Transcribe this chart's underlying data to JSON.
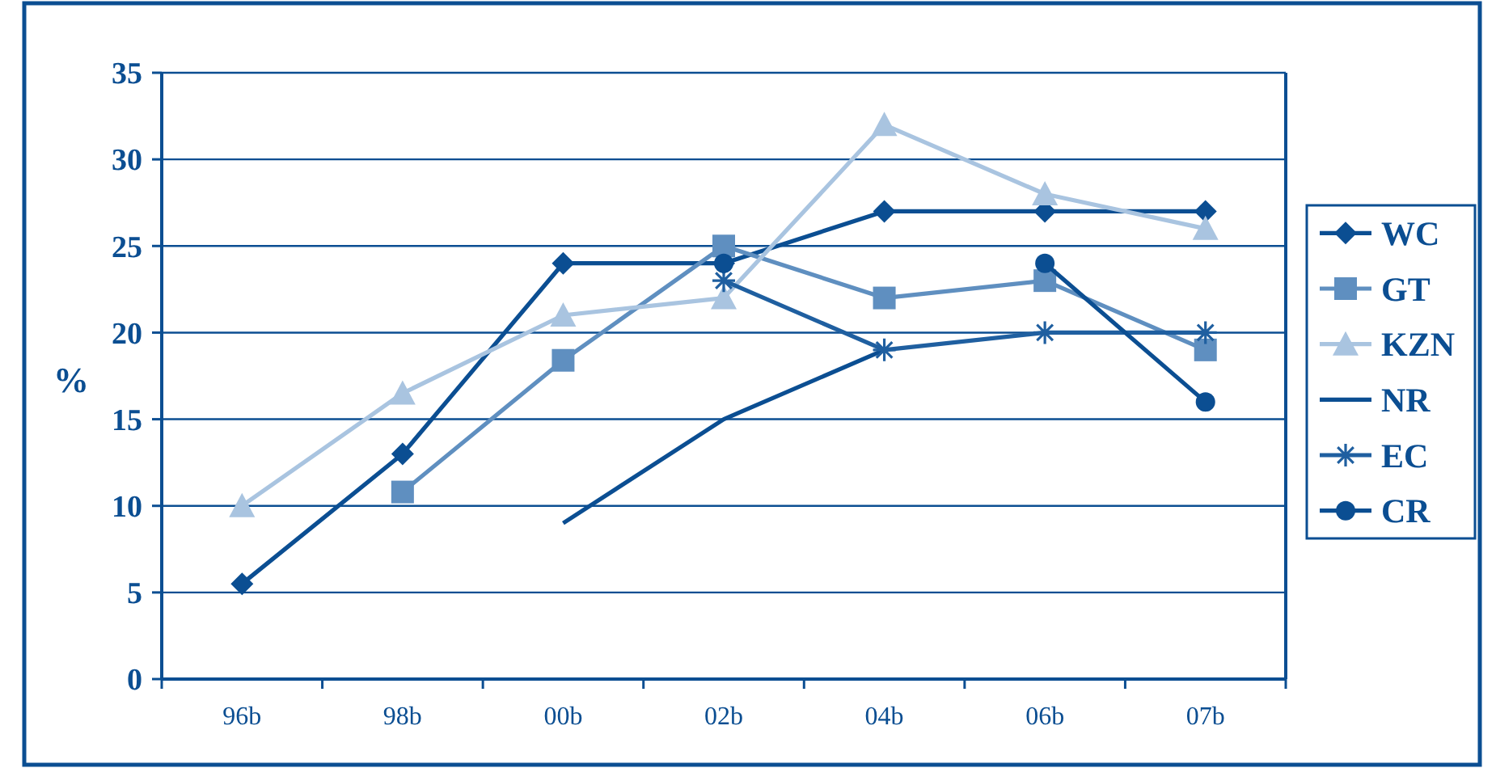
{
  "chart_data": {
    "type": "line",
    "ylabel": "%",
    "categories": [
      "96b",
      "98b",
      "00b",
      "02b",
      "04b",
      "06b",
      "07b"
    ],
    "ylim": [
      0,
      35
    ],
    "yticks": [
      0,
      5,
      10,
      15,
      20,
      25,
      30,
      35
    ],
    "grid": "y",
    "legend": "right",
    "series": [
      {
        "name": "WC",
        "color": "#0b4e92",
        "marker": "diamond",
        "values": [
          5.5,
          13,
          24,
          24,
          27,
          27,
          27
        ]
      },
      {
        "name": "GT",
        "color": "#5f8fc0",
        "marker": "square",
        "values": [
          null,
          10.8,
          18.4,
          25,
          22,
          23,
          19
        ]
      },
      {
        "name": "KZN",
        "color": "#a9c4e0",
        "marker": "triangle",
        "values": [
          10,
          16.5,
          21,
          22,
          32,
          28,
          26
        ]
      },
      {
        "name": "NR",
        "color": "#0b4e92",
        "marker": "none",
        "values": [
          null,
          null,
          9,
          15,
          19,
          null,
          null
        ]
      },
      {
        "name": "EC",
        "color": "#1f5fa0",
        "marker": "cross",
        "values": [
          null,
          null,
          null,
          23,
          19,
          20,
          20
        ]
      },
      {
        "name": "CR",
        "color": "#0b4e92",
        "marker": "circle",
        "values": [
          null,
          null,
          null,
          24,
          null,
          24,
          16
        ]
      }
    ]
  }
}
